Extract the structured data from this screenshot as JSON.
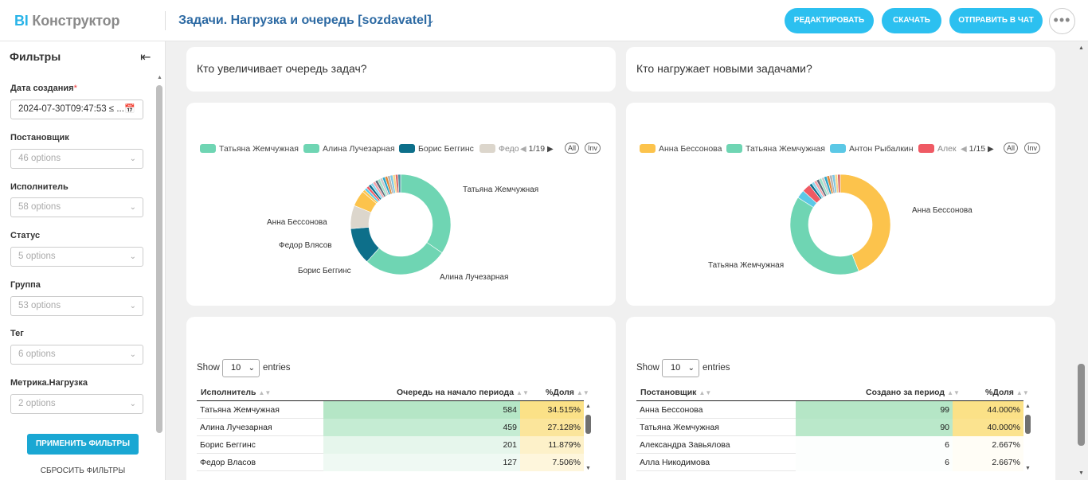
{
  "app": {
    "logo_bi": "BI",
    "logo_rest": "Конструктор"
  },
  "header": {
    "title": "Задачи. Нагрузка и очередь [sozdavatel]",
    "buttons": {
      "edit": "Редактировать",
      "download": "Скачать",
      "send": "Отправить в чат",
      "more": "•••"
    }
  },
  "sidebar": {
    "title": "Фильтры",
    "filters": [
      {
        "label": "Дата создания",
        "required": "*",
        "value": "2024-07-30T09:47:53 ≤ ..."
      },
      {
        "label": "Постановщик",
        "value": "46 options"
      },
      {
        "label": "Исполнитель",
        "value": "58 options"
      },
      {
        "label": "Статус",
        "value": "5 options"
      },
      {
        "label": "Группа",
        "value": "53 options"
      },
      {
        "label": "Тег",
        "value": "6 options"
      },
      {
        "label": "Метрика.Нагрузка",
        "value": "2 options"
      }
    ],
    "apply": "Применить фильтры",
    "reset": "Сбросить фильтры"
  },
  "left": {
    "title": "Кто увеличивает очередь задач?",
    "legend": {
      "items": [
        {
          "name": "Татьяна Жемчужная",
          "color": "#6fd5b3"
        },
        {
          "name": "Алина Лучезарная",
          "color": "#6fd5b3"
        },
        {
          "name": "Борис Беггинс",
          "color": "#0d6f8a"
        },
        {
          "name": "Федо",
          "color": "#dcd6cc"
        }
      ],
      "page": "1/19",
      "all": "All",
      "inv": "Inv"
    },
    "labels": {
      "tatiana": "Татьяна Жемчужная",
      "alina": "Алина Лучезарная",
      "boris": "Борис Беггинс",
      "fedor": "Федор Влясов",
      "anna": "Анна Бессонова"
    },
    "show": "Show",
    "entries": "entries",
    "page_size": "10",
    "table": {
      "headers": [
        "Исполнитель",
        "Очередь на начало периода",
        "%Доля"
      ],
      "rows": [
        [
          "Татьяна Жемчужная",
          "584",
          "34.515%"
        ],
        [
          "Алина Лучезарная",
          "459",
          "27.128%"
        ],
        [
          "Борис Беггинс",
          "201",
          "11.879%"
        ],
        [
          "Федор Власов",
          "127",
          "7.506%"
        ]
      ]
    }
  },
  "right": {
    "title": "Кто нагружает новыми задачами?",
    "legend": {
      "items": [
        {
          "name": "Анна Бессонова",
          "color": "#fcc34c"
        },
        {
          "name": "Татьяна Жемчужная",
          "color": "#6fd5b3"
        },
        {
          "name": "Антон Рыбалкин",
          "color": "#5bc8e6"
        },
        {
          "name": "Алек",
          "color": "#ef5a64"
        }
      ],
      "page": "1/15",
      "all": "All",
      "inv": "Inv"
    },
    "labels": {
      "anna": "Анна Бессонова",
      "tatiana": "Татьяна Жемчужная"
    },
    "show": "Show",
    "entries": "entries",
    "page_size": "10",
    "table": {
      "headers": [
        "Постановщик",
        "Создано за период",
        "%Доля"
      ],
      "rows": [
        [
          "Анна Бессонова",
          "99",
          "44.000%"
        ],
        [
          "Татьяна Жемчужная",
          "90",
          "40.000%"
        ],
        [
          "Александра Завьялова",
          "6",
          "2.667%"
        ],
        [
          "Алла Никодимова",
          "6",
          "2.667%"
        ]
      ]
    }
  }
}
